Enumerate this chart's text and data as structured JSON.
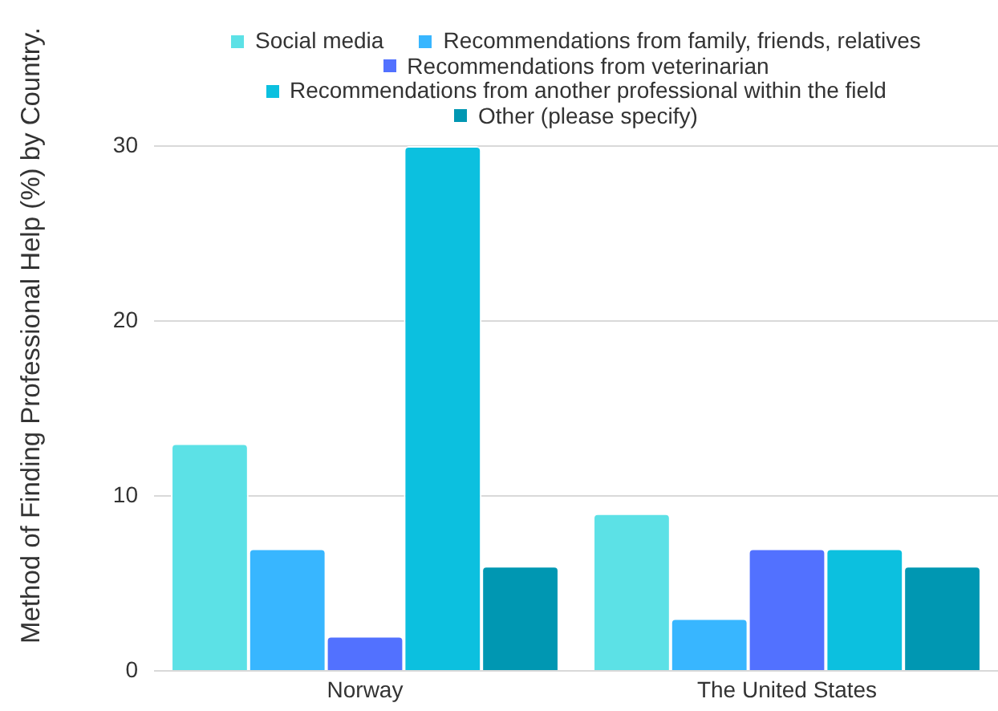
{
  "chart_data": {
    "type": "bar",
    "ylabel": "Method of Finding Professional Help (%) by Country.",
    "categories": [
      "Norway",
      "The United States"
    ],
    "series": [
      {
        "name": "Social media",
        "color": "#5ce1e6",
        "values": [
          13,
          9
        ]
      },
      {
        "name": "Recommendations from family, friends, relatives",
        "color": "#38b6ff",
        "values": [
          7,
          3
        ]
      },
      {
        "name": "Recommendations from veterinarian",
        "color": "#5271ff",
        "values": [
          2,
          7
        ]
      },
      {
        "name": "Recommendations from another professional within the field",
        "color": "#0cc0df",
        "values": [
          30,
          7
        ]
      },
      {
        "name": "Other (please specify)",
        "color": "#0097b2",
        "values": [
          6,
          6
        ]
      }
    ],
    "ylim": [
      0,
      30
    ],
    "yticks": [
      0,
      10,
      20,
      30
    ],
    "grid": "y",
    "legend": "top"
  }
}
